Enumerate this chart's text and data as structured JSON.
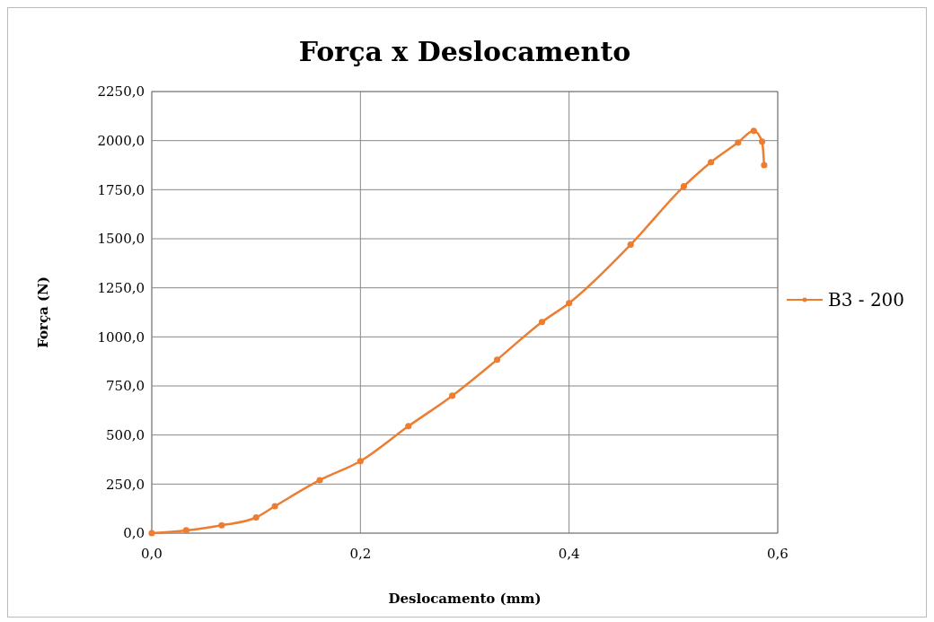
{
  "chart_data": {
    "type": "line",
    "title": "Força x Deslocamento",
    "xlabel": "Deslocamento (mm)",
    "ylabel": "Força (N)",
    "xlim": [
      0,
      0.6
    ],
    "xticks": [
      {
        "value": 0,
        "label": "0,0"
      },
      {
        "value": 0.2,
        "label": "0,2"
      },
      {
        "value": 0.4,
        "label": "0,4"
      },
      {
        "value": 0.6,
        "label": "0,6"
      }
    ],
    "ylim": [
      0,
      2250
    ],
    "yticks": [
      {
        "value": 0,
        "label": "0,0"
      },
      {
        "value": 250,
        "label": "250,0"
      },
      {
        "value": 500,
        "label": "500,0"
      },
      {
        "value": 750,
        "label": "750,0"
      },
      {
        "value": 1000,
        "label": "1000,0"
      },
      {
        "value": 1250,
        "label": "1250,0"
      },
      {
        "value": 1500,
        "label": "1500,0"
      },
      {
        "value": 1750,
        "label": "1750,0"
      },
      {
        "value": 2000,
        "label": "2000,0"
      },
      {
        "value": 2250,
        "label": "2250,0"
      }
    ],
    "grid": true,
    "legend": "right",
    "marker": "circle",
    "line_style": "solid",
    "series": [
      {
        "name": "B3 - 200",
        "color": "#ed7d31",
        "x": [
          0,
          0.033,
          0.067,
          0.1,
          0.118,
          0.161,
          0.2,
          0.246,
          0.288,
          0.331,
          0.374,
          0.4,
          0.459,
          0.51,
          0.536,
          0.562,
          0.577,
          0.585,
          0.587
        ],
        "values": [
          0,
          14,
          40,
          80,
          137,
          270,
          367,
          545,
          700,
          884,
          1076,
          1172,
          1470,
          1767,
          1890,
          1990,
          2050,
          1995,
          1875
        ]
      }
    ]
  }
}
